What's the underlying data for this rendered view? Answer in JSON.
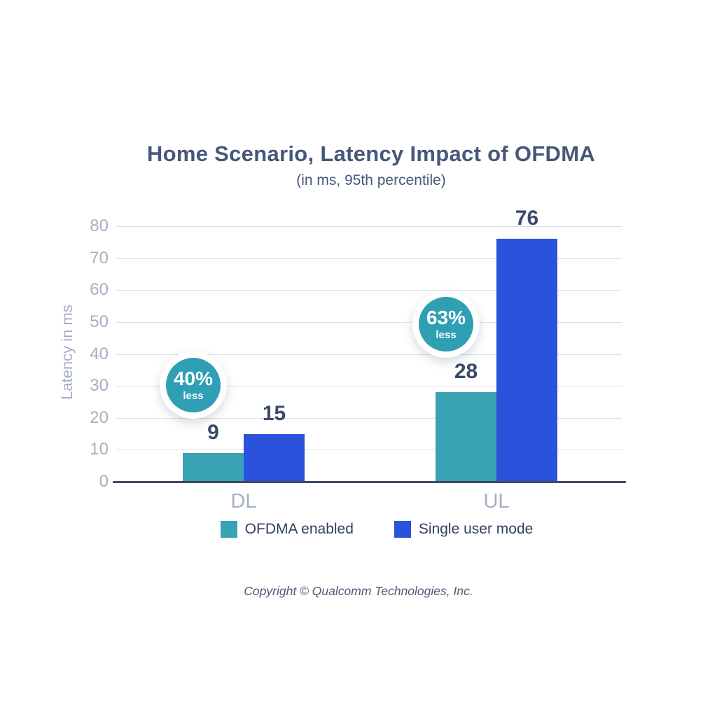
{
  "chart_data": {
    "type": "bar",
    "title": "Home Scenario, Latency Impact of OFDMA",
    "subtitle": "(in ms, 95th percentile)",
    "ylabel": "Latency in ms",
    "ylim": [
      0,
      80
    ],
    "yticks": [
      0,
      10,
      20,
      30,
      40,
      50,
      60,
      70,
      80
    ],
    "categories": [
      "DL",
      "UL"
    ],
    "series": [
      {
        "name": "OFDMA enabled",
        "color": "#3AA2B5",
        "values": [
          9,
          28
        ]
      },
      {
        "name": "Single user mode",
        "color": "#2B52DC",
        "values": [
          15,
          76
        ]
      }
    ],
    "annotations": [
      {
        "category": "DL",
        "value": "40%",
        "sub": "less"
      },
      {
        "category": "UL",
        "value": "63%",
        "sub": "less"
      }
    ],
    "grid": true,
    "legend_position": "bottom"
  },
  "footer": {
    "copyright": "Copyright © Qualcomm Technologies, Inc."
  },
  "colors": {
    "teal": "#3AA2B5",
    "blue": "#2B52DC",
    "badge_teal": "#2F9FB4",
    "title_text": "#46587A",
    "value_text": "#3C4A68",
    "axis_muted": "#A5AFC2",
    "gridline": "#DCDFE7",
    "baseline": "#3F4A63",
    "legend_text": "#2F3F5F",
    "copyright_text": "#4E5A73"
  }
}
